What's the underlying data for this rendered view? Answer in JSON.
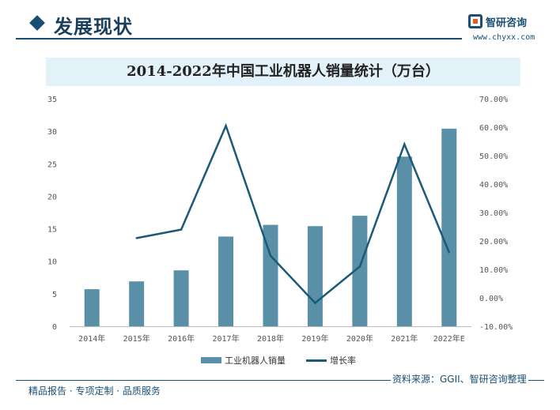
{
  "header": {
    "section_title": "发展现状",
    "logo_name": "智研咨询",
    "logo_url": "www.chyxx.com",
    "logo_icon": "chyxx-logo-icon",
    "accent_color": "#1a4f73"
  },
  "legend": {
    "bar_label": "工业机器人销量",
    "line_label": "增长率"
  },
  "footer": {
    "left": "精品报告 · 专项定制 · 品质服务",
    "source": "资料来源：GGII、智研咨询整理"
  },
  "chart_data": {
    "type": "bar+line",
    "title": "2014-2022年中国工业机器人销量统计（万台）",
    "categories": [
      "2014年",
      "2015年",
      "2016年",
      "2017年",
      "2018年",
      "2019年",
      "2020年",
      "2021年",
      "2022年E"
    ],
    "series": [
      {
        "name": "工业机器人销量",
        "type": "bar",
        "axis": "left",
        "color": "#5a8fa8",
        "values": [
          5.7,
          6.9,
          8.6,
          13.8,
          15.6,
          15.4,
          17.0,
          26.1,
          30.4
        ]
      },
      {
        "name": "增长率",
        "type": "line",
        "axis": "right",
        "color": "#1a5a78",
        "values": [
          null,
          21.0,
          24.0,
          60.5,
          14.8,
          -1.8,
          11.0,
          54.0,
          16.0
        ]
      }
    ],
    "y_left": {
      "min": 0,
      "max": 35,
      "ticks": [
        "0",
        "5",
        "10",
        "15",
        "20",
        "25",
        "30",
        "35"
      ]
    },
    "y_right": {
      "min": -10,
      "max": 70,
      "ticks": [
        "-10.00%",
        "0.00%",
        "10.00%",
        "20.00%",
        "30.00%",
        "40.00%",
        "50.00%",
        "60.00%",
        "70.00%"
      ]
    },
    "grid": false,
    "legend_position": "bottom"
  }
}
